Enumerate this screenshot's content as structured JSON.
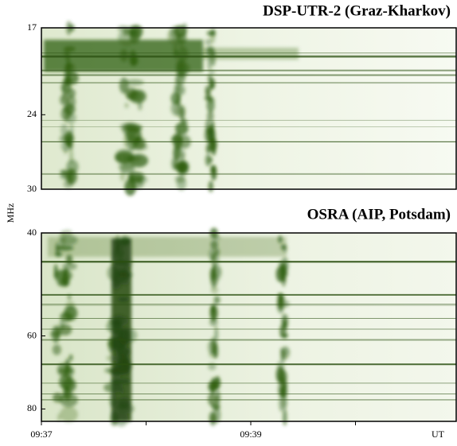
{
  "chart_data": [
    {
      "type": "spectrogram",
      "title": "DSP-UTR-2 (Graz-Kharkov)",
      "ylabel": "MHz",
      "ylim": [
        30,
        17
      ],
      "yticks": [
        17,
        24,
        30
      ],
      "color": "#2f5f12",
      "title_color": "#e0001a"
    },
    {
      "type": "spectrogram",
      "title": "OSRA (AIP, Potsdam)",
      "ylim": [
        84,
        40
      ],
      "yticks": [
        40,
        60,
        80
      ],
      "log_scale": true,
      "color": "#2f5f12",
      "title_color": "#e0001a",
      "categories": [
        "09:37",
        null,
        "09:39",
        null
      ],
      "x_unit_label": "UT"
    }
  ]
}
